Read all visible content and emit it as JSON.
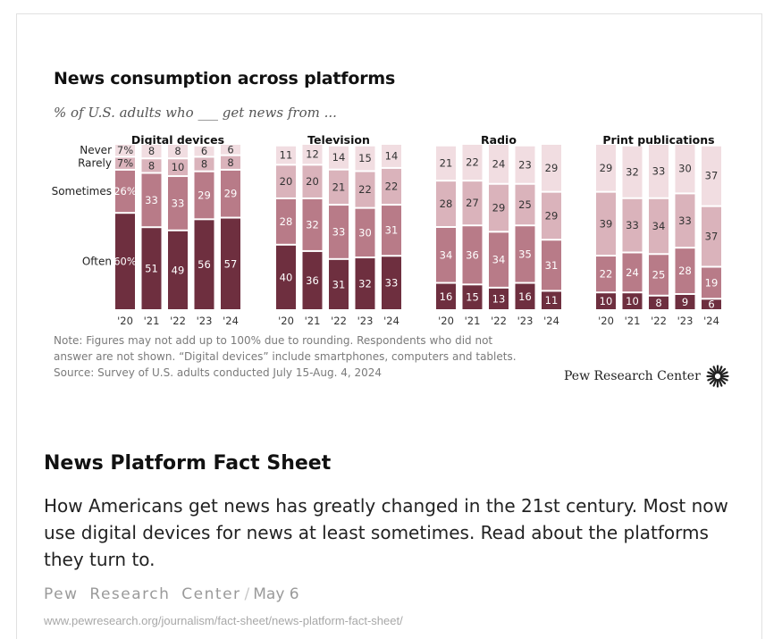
{
  "chart_image": {
    "title": "News consumption across platforms",
    "subtitle": "% of U.S. adults who ___ get news from ...",
    "note_lines": [
      "Note: Figures may not add up to 100% due to rounding. Respondents who did not",
      "answer are not shown. “Digital devices” include smartphones, computers and tablets.",
      "Source: Survey of U.S. adults conducted July 15-Aug. 4, 2024"
    ],
    "brand": "Pew Research Center",
    "brand_logo": "pew-sunburst-icon"
  },
  "chart_data": {
    "type": "bar",
    "stacked": true,
    "categories": [
      "'20",
      "'21",
      "'22",
      "'23",
      "'24"
    ],
    "stack_order": [
      "Often",
      "Sometimes",
      "Rarely",
      "Never"
    ],
    "colors": {
      "Often": "#6e2f3f",
      "Sometimes": "#b87b88",
      "Rarely": "#dab3bb",
      "Never": "#f1dde1"
    },
    "panels": [
      {
        "name": "Digital devices",
        "series": [
          {
            "name": "Often",
            "values": [
              60,
              51,
              49,
              56,
              57
            ],
            "labels": [
              "60%",
              "51",
              "49",
              "56",
              "57"
            ]
          },
          {
            "name": "Sometimes",
            "values": [
              26,
              33,
              33,
              29,
              29
            ],
            "labels": [
              "26%",
              "33",
              "33",
              "29",
              "29"
            ]
          },
          {
            "name": "Rarely",
            "values": [
              7,
              8,
              10,
              8,
              8
            ],
            "labels": [
              "7%",
              "8",
              "10",
              "8",
              "8"
            ]
          },
          {
            "name": "Never",
            "values": [
              7,
              8,
              8,
              6,
              6
            ],
            "labels": [
              "7%",
              "8",
              "8",
              "6",
              "6"
            ]
          }
        ]
      },
      {
        "name": "Television",
        "series": [
          {
            "name": "Often",
            "values": [
              40,
              36,
              31,
              32,
              33
            ],
            "labels": [
              "40",
              "36",
              "31",
              "32",
              "33"
            ]
          },
          {
            "name": "Sometimes",
            "values": [
              28,
              32,
              33,
              30,
              31
            ],
            "labels": [
              "28",
              "32",
              "33",
              "30",
              "31"
            ]
          },
          {
            "name": "Rarely",
            "values": [
              20,
              20,
              21,
              22,
              22
            ],
            "labels": [
              "20",
              "20",
              "21",
              "22",
              "22"
            ]
          },
          {
            "name": "Never",
            "values": [
              11,
              12,
              14,
              15,
              14
            ],
            "labels": [
              "11",
              "12",
              "14",
              "15",
              "14"
            ]
          }
        ]
      },
      {
        "name": "Radio",
        "series": [
          {
            "name": "Often",
            "values": [
              16,
              15,
              13,
              16,
              11
            ],
            "labels": [
              "16",
              "15",
              "13",
              "16",
              "11"
            ]
          },
          {
            "name": "Sometimes",
            "values": [
              34,
              36,
              34,
              35,
              31
            ],
            "labels": [
              "34",
              "36",
              "34",
              "35",
              "31"
            ]
          },
          {
            "name": "Rarely",
            "values": [
              28,
              27,
              29,
              25,
              29
            ],
            "labels": [
              "28",
              "27",
              "29",
              "25",
              "29"
            ]
          },
          {
            "name": "Never",
            "values": [
              21,
              22,
              24,
              23,
              29
            ],
            "labels": [
              "21",
              "22",
              "24",
              "23",
              "29"
            ]
          }
        ]
      },
      {
        "name": "Print publications",
        "series": [
          {
            "name": "Often",
            "values": [
              10,
              10,
              8,
              9,
              6
            ],
            "labels": [
              "10",
              "10",
              "8",
              "9",
              "6"
            ]
          },
          {
            "name": "Sometimes",
            "values": [
              22,
              24,
              25,
              28,
              19
            ],
            "labels": [
              "22",
              "24",
              "25",
              "28",
              "19"
            ]
          },
          {
            "name": "Rarely",
            "values": [
              39,
              33,
              34,
              33,
              37
            ],
            "labels": [
              "39",
              "33",
              "34",
              "33",
              "37"
            ]
          },
          {
            "name": "Never",
            "values": [
              29,
              32,
              33,
              30,
              37
            ],
            "labels": [
              "29",
              "32",
              "33",
              "30",
              "37"
            ]
          }
        ]
      }
    ],
    "row_labels": [
      "Never",
      "Rarely",
      "Sometimes",
      "Often"
    ],
    "ylim": [
      0,
      100
    ]
  },
  "card": {
    "headline": "News Platform Fact Sheet",
    "description": "How Americans get news has greatly changed in the 21st century. Most now use digital devices for news at least sometimes. Read about the platforms they turn to.",
    "site": "Pew Research Center",
    "separator": "/",
    "date": "May 6",
    "url": "www.pewresearch.org/journalism/fact-sheet/news-platform-fact-sheet/"
  }
}
